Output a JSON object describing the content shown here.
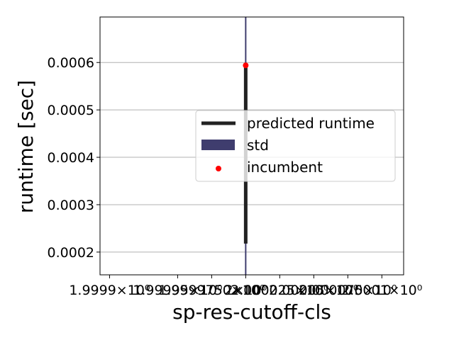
{
  "chart_data": {
    "type": "line",
    "xlabel": "sp-res-cutoff-cls",
    "ylabel": "runtime [sec]",
    "x_tick_labels": [
      "1.9999×10⁰",
      "1.99995×10⁰",
      "1.9999750×10⁰",
      "2×10⁰",
      "2.000025×10⁰",
      "2.00005×10⁰",
      "2.000075×10⁰",
      "2.0001×10⁰"
    ],
    "x_ticks": [
      1.9999,
      1.99995,
      1.999975,
      2.0,
      2.000025,
      2.00005,
      2.000075,
      2.0001
    ],
    "xlim": [
      1.999893,
      2.000116
    ],
    "y_ticks": [
      0.0002,
      0.0003,
      0.0004,
      0.0005,
      0.0006
    ],
    "y_tick_labels": [
      "0.0002",
      "0.0003",
      "0.0004",
      "0.0005",
      "0.0006"
    ],
    "ylim": [
      0.000152,
      0.000696
    ],
    "grid": "horizontal",
    "legend": {
      "placement": "center-right",
      "entries": [
        "predicted runtime",
        "std",
        "incumbent"
      ]
    },
    "series": [
      {
        "name": "predicted runtime",
        "kind": "line",
        "color": "#222222",
        "x": [
          2.0,
          2.0
        ],
        "y": [
          0.000218,
          0.000594
        ]
      },
      {
        "name": "std",
        "kind": "band",
        "color": "#3f3d6e",
        "x": [
          2.0,
          2.0
        ],
        "y_low": [
          0.000152,
          0.000152
        ],
        "y_high": [
          0.000696,
          0.000696
        ]
      },
      {
        "name": "incumbent",
        "kind": "scatter",
        "color": "#ff0000",
        "x": [
          2.0
        ],
        "y": [
          0.000594
        ]
      }
    ]
  }
}
